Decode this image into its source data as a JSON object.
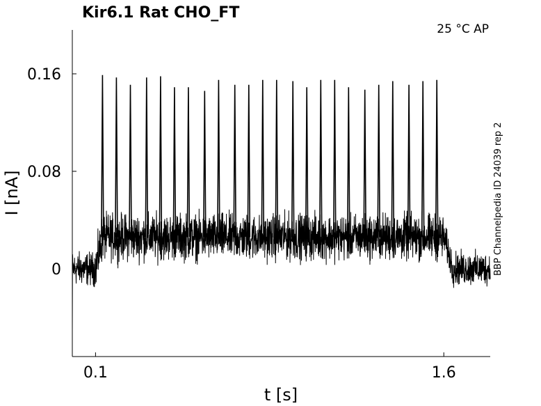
{
  "chart_data": {
    "type": "line",
    "title": "Kir6.1  Rat  CHO_FT",
    "condition_label": "25 °C  AP",
    "side_label": "BBP Channelpedia ID 24039 rep 2",
    "xlabel": "t [s]",
    "ylabel": "I [nA]",
    "xlim": [
      0.0,
      1.8
    ],
    "ylim": [
      -0.072,
      0.196
    ],
    "x_ticks": [
      0.1,
      1.6
    ],
    "x_tick_labels": [
      "0.1",
      "1.6"
    ],
    "y_ticks": [
      0,
      0.08,
      0.16
    ],
    "y_tick_labels": [
      "0",
      "0.08",
      "0.16"
    ],
    "grid": false,
    "legend": "none",
    "line_color": "#000000",
    "series": [
      {
        "baseline_before": 0.0,
        "plateau_level": 0.026,
        "step_on_time": 0.1,
        "step_off_time": 1.6,
        "spike_times": [
          0.13,
          0.19,
          0.25,
          0.32,
          0.38,
          0.44,
          0.5,
          0.57,
          0.63,
          0.7,
          0.76,
          0.82,
          0.88,
          0.95,
          1.01,
          1.07,
          1.13,
          1.19,
          1.26,
          1.32,
          1.38,
          1.45,
          1.51,
          1.57
        ],
        "spike_peaks": [
          0.159,
          0.157,
          0.151,
          0.157,
          0.158,
          0.149,
          0.149,
          0.146,
          0.155,
          0.151,
          0.151,
          0.155,
          0.155,
          0.154,
          0.149,
          0.155,
          0.155,
          0.149,
          0.147,
          0.151,
          0.154,
          0.151,
          0.154,
          0.155
        ]
      }
    ]
  }
}
